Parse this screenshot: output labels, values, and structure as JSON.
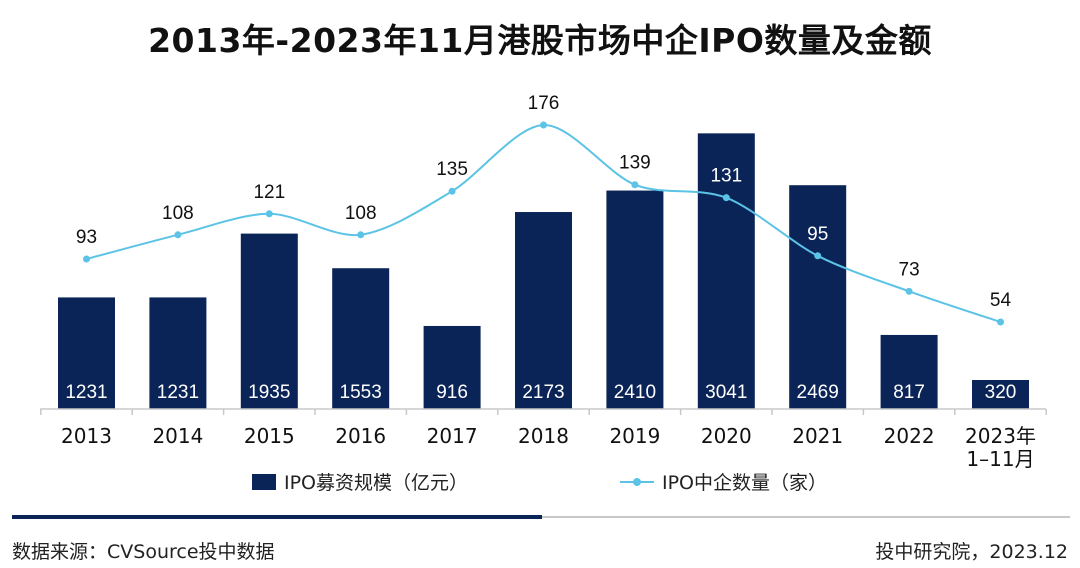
{
  "chart_data": {
    "type": "bar+line",
    "title": "2013年-2023年11月港股市场中企IPO数量及金额",
    "categories": [
      "2013",
      "2014",
      "2015",
      "2016",
      "2017",
      "2018",
      "2019",
      "2020",
      "2021",
      "2022",
      "2023年\n1–11月"
    ],
    "series": [
      {
        "name": "IPO募资规模（亿元）",
        "type": "bar",
        "values": [
          1231,
          1231,
          1935,
          1553,
          916,
          2173,
          2410,
          3041,
          2469,
          817,
          320
        ]
      },
      {
        "name": "IPO中企数量（家）",
        "type": "line",
        "values": [
          93,
          108,
          121,
          108,
          135,
          176,
          139,
          131,
          95,
          73,
          54
        ]
      }
    ],
    "bar_ylim": [
      0,
      3100
    ],
    "line_ylim": [
      0,
      250
    ],
    "legend_position": "bottom",
    "colors": {
      "bar": "#0b2458",
      "line": "#5bc3e6",
      "rule": "#0b2458"
    }
  },
  "footer": {
    "source": "数据来源：CVSource投中数据",
    "credit": "投中研究院，2023.12"
  }
}
